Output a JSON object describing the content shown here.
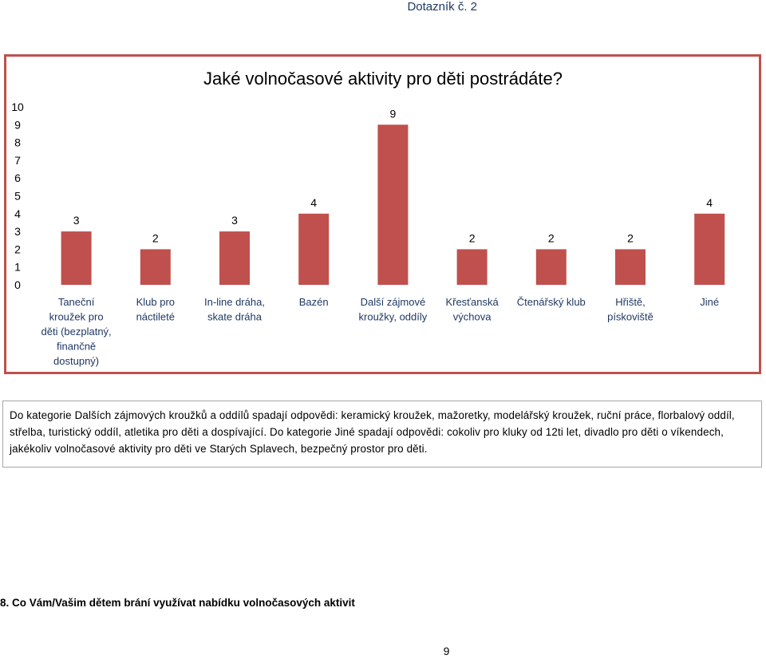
{
  "header": {
    "title": "Dotazník č. 2"
  },
  "chart_data": {
    "type": "bar",
    "title": "Jaké volnočasové aktivity pro děti postrádáte?",
    "categories": [
      [
        "Taneční",
        "kroužek pro",
        "děti (bezplatný,",
        "finančně",
        "dostupný)"
      ],
      [
        "Klub pro",
        "náctileté"
      ],
      [
        "In-line dráha,",
        "skate dráha"
      ],
      [
        "Bazén"
      ],
      [
        "Další zájmové",
        "kroužky, oddíly"
      ],
      [
        "Křesťanská",
        "výchova"
      ],
      [
        "Čtenářský klub"
      ],
      [
        "Hřiště,",
        "pískoviště"
      ],
      [
        "Jiné"
      ]
    ],
    "values": [
      3,
      2,
      3,
      4,
      9,
      2,
      2,
      2,
      4
    ],
    "yticks": [
      "0",
      "1",
      "2",
      "3",
      "4",
      "5",
      "6",
      "7",
      "8",
      "9",
      "10"
    ],
    "ylim": [
      0,
      10
    ],
    "grid": false,
    "legend": "none",
    "bar_color": "#c0504d",
    "frame_color": "#c0504d"
  },
  "note": {
    "text": "Do kategorie Dalších zájmových kroužků a oddílů spadají odpovědi: keramický kroužek, mažoretky, modelářský kroužek, ruční práce, florbalový oddíl, střelba, turistický oddíl, atletika pro děti a dospívající. Do kategorie Jiné spadají odpovědi: cokoliv pro kluky od 12ti let, divadlo pro děti o víkendech, jakékoliv volnočasové aktivity pro děti ve Starých Splavech, bezpečný prostor pro děti."
  },
  "question": {
    "text": "8. Co Vám/Vašim dětem brání využívat nabídku volnočasových aktivit"
  },
  "footer": {
    "page_number": "9"
  }
}
